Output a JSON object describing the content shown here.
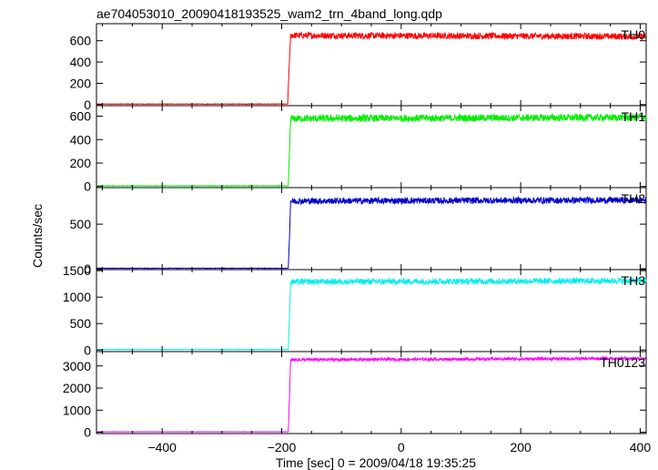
{
  "chart_data": {
    "type": "line",
    "title": "ae704053010_20090418193525_wam2_trn_4band_long.qdp",
    "xlabel": "Time [sec] 0 = 2009/04/18 19:35:25",
    "ylabel": "Counts/sec",
    "xlim": [
      -510,
      410
    ],
    "x_ticks": [
      -400,
      -200,
      0,
      200,
      400
    ],
    "x_tick_labels": [
      "−400",
      "−200",
      "0",
      "200",
      "400"
    ],
    "grid": false,
    "series": [
      {
        "name": "TH0",
        "color": "#ff0000",
        "ylim": [
          -10,
          760
        ],
        "y_ticks": [
          0,
          200,
          400,
          600
        ],
        "x": [
          -510,
          -195,
          -190,
          -188,
          -185,
          410
        ],
        "values": [
          5,
          5,
          5,
          300,
          650,
          640
        ],
        "noise": 30
      },
      {
        "name": "TH1",
        "color": "#00ee00",
        "ylim": [
          -10,
          690
        ],
        "y_ticks": [
          0,
          200,
          400,
          600
        ],
        "x": [
          -510,
          -192,
          -189,
          -187,
          -185,
          410
        ],
        "values": [
          5,
          5,
          5,
          300,
          580,
          590
        ],
        "noise": 30
      },
      {
        "name": "TH2",
        "color": "#0000cc",
        "ylim": [
          -10,
          910
        ],
        "y_ticks": [
          0,
          500
        ],
        "x": [
          -510,
          -192,
          -189,
          -187,
          -185,
          410
        ],
        "values": [
          5,
          5,
          5,
          350,
          760,
          770
        ],
        "noise": 35
      },
      {
        "name": "TH3",
        "color": "#00eeee",
        "ylim": [
          -30,
          1520
        ],
        "y_ticks": [
          0,
          500,
          1000,
          1500
        ],
        "x": [
          -510,
          -192,
          -189,
          -187,
          -185,
          410
        ],
        "values": [
          10,
          10,
          10,
          650,
          1290,
          1310
        ],
        "noise": 55
      },
      {
        "name": "TH0123",
        "color": "#ff00ff",
        "ylim": [
          -60,
          3650
        ],
        "y_ticks": [
          0,
          1000,
          2000,
          3000
        ],
        "x": [
          -510,
          -192,
          -189,
          -187,
          -185,
          410
        ],
        "values": [
          20,
          20,
          20,
          1600,
          3280,
          3340
        ],
        "noise": 65
      }
    ]
  }
}
